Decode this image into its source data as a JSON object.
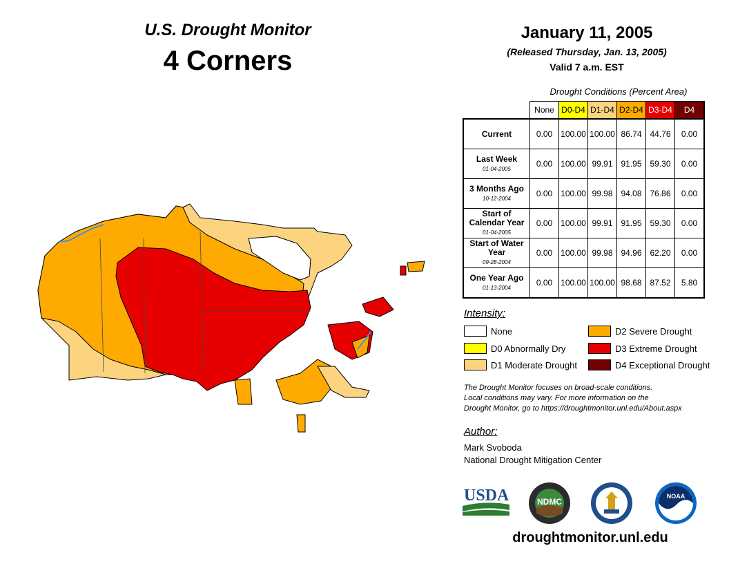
{
  "header": {
    "monitor_title": "U.S. Drought Monitor",
    "region": "4 Corners",
    "date": "January 11, 2005",
    "released": "(Released Thursday, Jan. 13, 2005)",
    "valid": "Valid 7 a.m. EST"
  },
  "conditions": {
    "caption": "Drought Conditions (Percent Area)",
    "columns": [
      "None",
      "D0-D4",
      "D1-D4",
      "D2-D4",
      "D3-D4",
      "D4"
    ],
    "column_colors": [
      "#ffffff",
      "#ffff00",
      "#fcd37f",
      "#ffaa00",
      "#e60000",
      "#730000"
    ],
    "rows": [
      {
        "label": "Current",
        "date": "",
        "values": [
          "0.00",
          "100.00",
          "100.00",
          "86.74",
          "44.76",
          "0.00"
        ]
      },
      {
        "label": "Last Week",
        "date": "01-04-2005",
        "values": [
          "0.00",
          "100.00",
          "99.91",
          "91.95",
          "59.30",
          "0.00"
        ]
      },
      {
        "label": "3 Months Ago",
        "date": "10-12-2004",
        "values": [
          "0.00",
          "100.00",
          "99.98",
          "94.08",
          "76.86",
          "0.00"
        ]
      },
      {
        "label": "Start of Calendar Year",
        "date": "01-04-2005",
        "values": [
          "0.00",
          "100.00",
          "99.91",
          "91.95",
          "59.30",
          "0.00"
        ]
      },
      {
        "label": "Start of Water Year",
        "date": "09-28-2004",
        "values": [
          "0.00",
          "100.00",
          "99.98",
          "94.96",
          "62.20",
          "0.00"
        ]
      },
      {
        "label": "One Year Ago",
        "date": "01-13-2004",
        "values": [
          "0.00",
          "100.00",
          "100.00",
          "98.68",
          "87.52",
          "5.80"
        ]
      }
    ]
  },
  "legend": {
    "heading": "Intensity:",
    "items": [
      {
        "label": "None",
        "color": "#ffffff"
      },
      {
        "label": "D0 Abnormally Dry",
        "color": "#ffff00"
      },
      {
        "label": "D1 Moderate Drought",
        "color": "#fcd37f"
      },
      {
        "label": "D2 Severe Drought",
        "color": "#ffaa00"
      },
      {
        "label": "D3 Extreme Drought",
        "color": "#e60000"
      },
      {
        "label": "D4 Exceptional Drought",
        "color": "#730000"
      }
    ]
  },
  "note": {
    "line1": "The Drought Monitor focuses on broad-scale conditions.",
    "line2": "Local conditions may vary. For more information on the",
    "line3": "Drought Monitor, go to https://droughtmonitor.unl.edu/About.aspx"
  },
  "author": {
    "heading": "Author:",
    "name": "Mark Svoboda",
    "org": "National Drought Mitigation Center"
  },
  "logos": {
    "usda": "USDA",
    "ndmc": "NDMC",
    "noaa": "NOAA"
  },
  "website": "droughtmonitor.unl.edu",
  "map_colors": {
    "d1": "#fcd37f",
    "d2": "#ffaa00",
    "d3": "#e60000",
    "water": "#4a90d9"
  }
}
